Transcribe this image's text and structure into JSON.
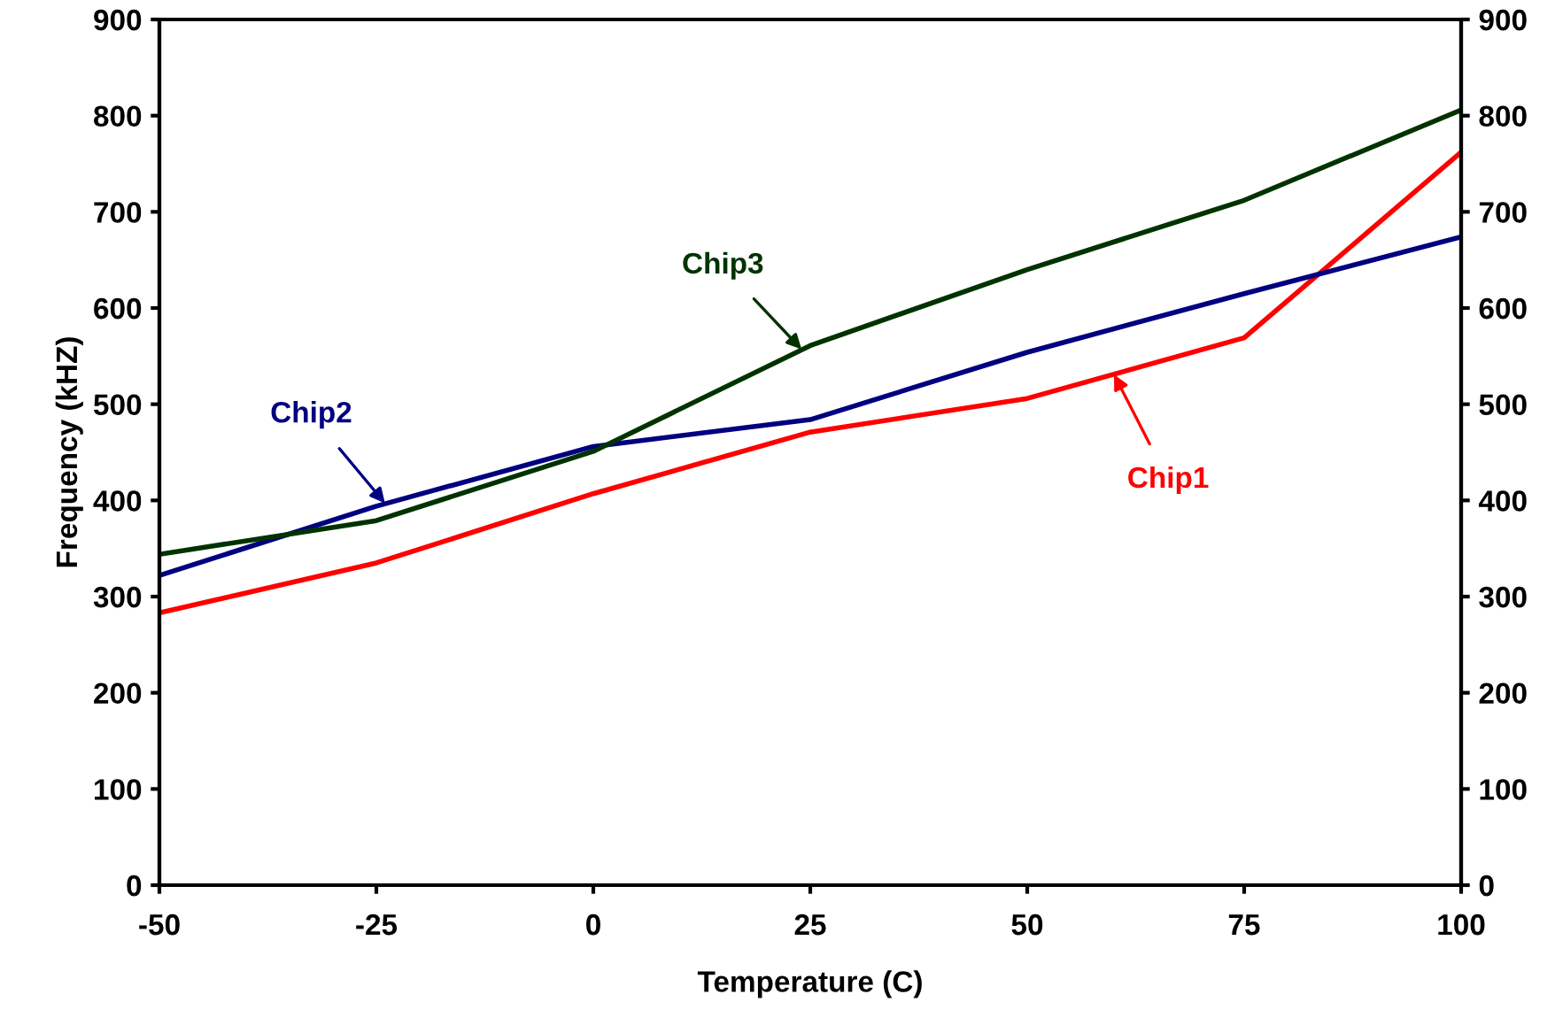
{
  "chart_data": {
    "type": "line",
    "xlabel": "Temperature (C)",
    "ylabel": "Frequency (kHZ)",
    "x": [
      -50,
      -25,
      0,
      25,
      50,
      75,
      100
    ],
    "series": [
      {
        "color": "#ff0000",
        "values": [
          283,
          335,
          407,
          471,
          506,
          569,
          762
        ]
      },
      {
        "color": "#000080",
        "values": [
          322,
          394,
          456,
          484,
          554,
          615,
          674
        ]
      },
      {
        "color": "#003300",
        "values": [
          344,
          379,
          451,
          561,
          640,
          712,
          806
        ]
      }
    ],
    "annotations": [
      {
        "text": "Chip1",
        "x": 60,
        "y": 531
      },
      {
        "text": "Chip2",
        "x": -24,
        "y": 397
      },
      {
        "text": "Chip3",
        "x": 24,
        "y": 557
      }
    ],
    "xlim": [
      -50,
      100
    ],
    "xticks": [
      -50,
      -25,
      0,
      25,
      50,
      75,
      100
    ],
    "ylim": [
      0,
      900
    ],
    "yticks": [
      0,
      100,
      200,
      300,
      400,
      500,
      600,
      700,
      800,
      900
    ],
    "y2lim": [
      0,
      900
    ],
    "y2ticks": [
      0,
      100,
      200,
      300,
      400,
      500,
      600,
      700,
      800,
      900
    ],
    "grid": false,
    "legend": false,
    "marker": "none",
    "line_style": "solid"
  }
}
